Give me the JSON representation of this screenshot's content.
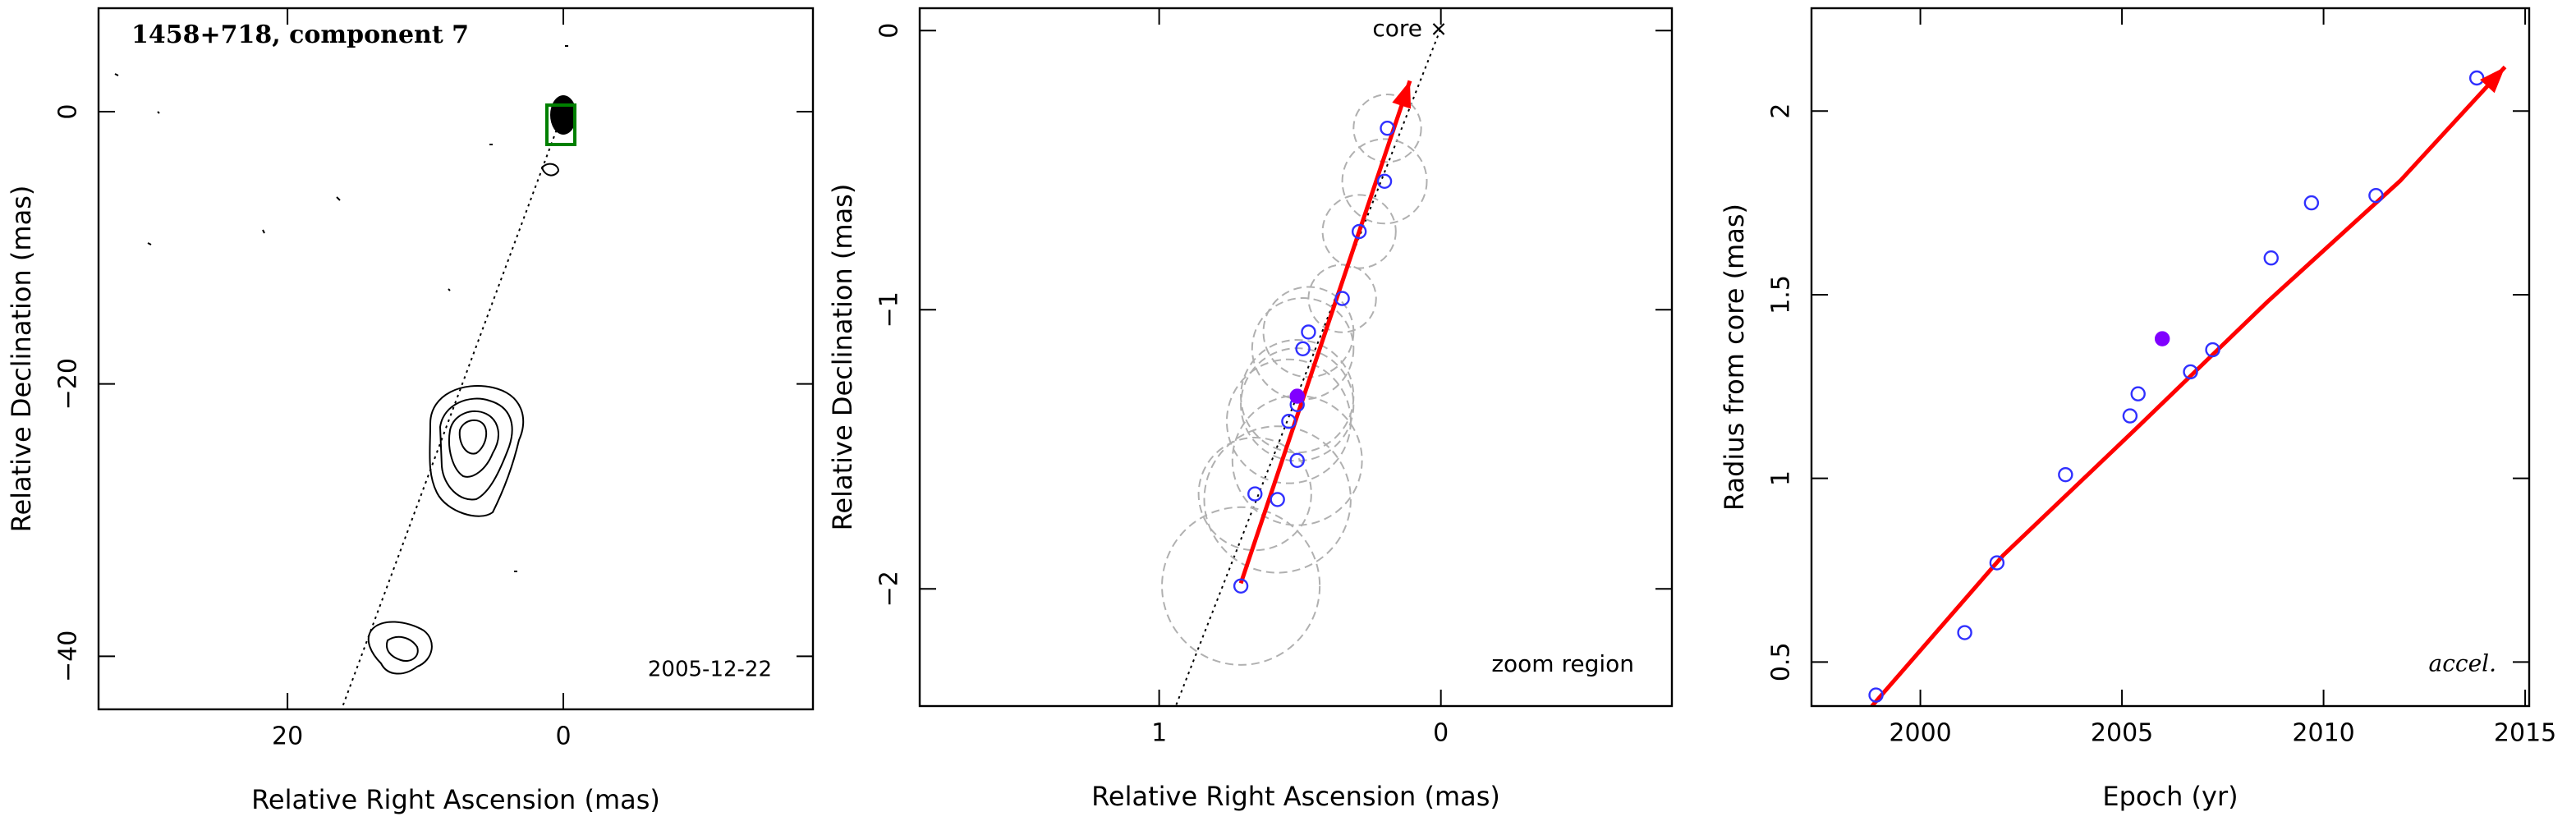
{
  "chart_data": [
    {
      "type": "map",
      "title": "1458+718, component 7",
      "annotation": "2005-12-22",
      "x_label": "Relative Right Ascension (mas)",
      "y_label": "Relative Declination (mas)",
      "xlim": [
        33.7,
        -18.1
      ],
      "ylim": [
        -43.9,
        7.6
      ],
      "xticks": [
        20,
        0
      ],
      "yticks": [
        0,
        {
          "value": -20,
          "label": "−20"
        },
        {
          "value": -40,
          "label": "−40"
        }
      ]
    },
    {
      "type": "scatter",
      "annotations": [
        "core",
        "zoom region"
      ],
      "x_label": "Relative Right Ascension (mas)",
      "y_label": "Relative Declination (mas)",
      "xlim": [
        1.85,
        -0.82
      ],
      "ylim": [
        -2.42,
        0.08
      ],
      "xticks": [
        1,
        0
      ],
      "yticks": [
        0,
        {
          "value": -1,
          "label": "−1"
        },
        {
          "value": -2,
          "label": "−2"
        }
      ],
      "series": [
        {
          "color": "#3030ff",
          "marker": "open",
          "x": [
            0.19,
            0.2,
            0.29,
            0.35,
            0.47,
            0.49,
            0.51,
            0.54,
            0.51,
            0.66,
            0.58,
            0.71
          ],
          "y": [
            -0.35,
            -0.54,
            -0.72,
            -0.96,
            -1.08,
            -1.14,
            -1.34,
            -1.4,
            -1.54,
            -1.66,
            -1.68,
            -1.99
          ],
          "radii": [
            0.12,
            0.15,
            0.13,
            0.12,
            0.16,
            0.18,
            0.2,
            0.22,
            0.23,
            0.2,
            0.26,
            0.28
          ],
          "radii_color": "#b0b0b0"
        },
        {
          "color": "#8000ff",
          "marker": "filled",
          "x": [
            0.51
          ],
          "y": [
            -1.31
          ],
          "radii": [
            0.2
          ],
          "radii_color": "#b0b0b0"
        }
      ],
      "arrow": {
        "color": "#ff0000",
        "x": [
          0.71,
          0.11
        ],
        "y": [
          -1.98,
          -0.18
        ]
      }
    },
    {
      "type": "scatter",
      "annotation": "accel.",
      "x_label": "Epoch (yr)",
      "y_label": "Radius from core (mas)",
      "xlim": [
        1997.3,
        2015.1
      ],
      "ylim": [
        0.38,
        2.28
      ],
      "xticks": [
        2000,
        2005,
        2010,
        2015
      ],
      "yticks": [
        0.5,
        1,
        1.5,
        2
      ],
      "series": [
        {
          "color": "#3030ff",
          "marker": "open",
          "x": [
            1998.9,
            2001.1,
            2001.9,
            2003.6,
            2005.2,
            2005.4,
            2006.7,
            2007.25,
            2008.7,
            2009.7,
            2011.3,
            2013.8
          ],
          "y": [
            0.41,
            0.58,
            0.77,
            1.01,
            1.17,
            1.23,
            1.29,
            1.35,
            1.6,
            1.75,
            1.77,
            2.09
          ]
        },
        {
          "color": "#8000ff",
          "marker": "filled",
          "x": [
            2006.0
          ],
          "y": [
            1.38
          ]
        }
      ],
      "fit": {
        "color": "#ff0000",
        "x": [
          1998.8,
          2002.05,
          2005.3,
          2008.6,
          2011.9,
          2014.5
        ],
        "y": [
          0.38,
          0.79,
          1.13,
          1.48,
          1.81,
          2.12
        ]
      }
    }
  ]
}
